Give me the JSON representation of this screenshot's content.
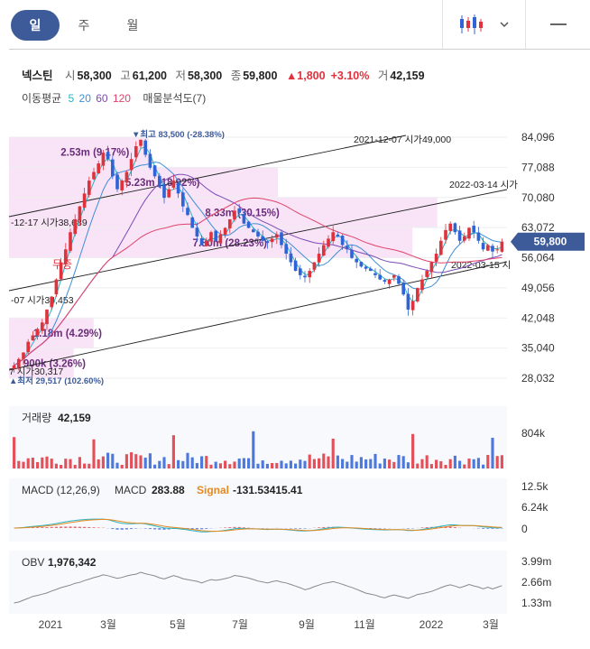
{
  "tabs": [
    {
      "label": "일",
      "active": true
    },
    {
      "label": "주",
      "active": false
    },
    {
      "label": "월",
      "active": false
    }
  ],
  "toolbar": {
    "chart_type_icon": "candlestick-icon",
    "dropdown_icon": "chevron-down-icon",
    "menu_icon": "menu-icon"
  },
  "quote": {
    "name": "넥스틴",
    "open_label": "시",
    "open": "58,300",
    "high_label": "고",
    "high": "61,200",
    "low_label": "저",
    "low": "58,300",
    "close_label": "종",
    "close": "59,800",
    "change": "▲1,800",
    "change_pct": "+3.10%",
    "volume_label": "거",
    "volume": "42,159"
  },
  "indicators": {
    "ma_label": "이동평균",
    "ma_periods": [
      {
        "value": "5",
        "color": "#2bb3c0"
      },
      {
        "value": "20",
        "color": "#3e8fd6"
      },
      {
        "value": "60",
        "color": "#7b4bb5"
      },
      {
        "value": "120",
        "color": "#e0426b"
      }
    ],
    "vp_label": "매물분석도(7)"
  },
  "colors": {
    "up": "#e0323c",
    "down": "#2f63d6",
    "volume_profile": "#f5d8f2",
    "accent": "#3d5a99"
  },
  "chart_data": {
    "type": "candlestick",
    "x_labels": [
      "2021",
      "3월",
      "5월",
      "7월",
      "9월",
      "11월",
      "2022",
      "3월"
    ],
    "price_axis": [
      "84,096",
      "77,088",
      "70,080",
      "63,072",
      "56,064",
      "49,056",
      "42,048",
      "35,040",
      "28,032"
    ],
    "ylim": [
      28032,
      84096
    ],
    "current_price": "59,800",
    "high_marker": {
      "label": "▼최고",
      "value": "83,500 (-28.38%)"
    },
    "low_marker": {
      "label": "▲최저",
      "value": "29,517 (102.60%)"
    },
    "trendline_labels": [
      "2021-12-07 시가49,000",
      "2022-03-14 시가",
      "-12-17 시가38,689",
      "2022-03-15 시",
      "-07 시가34,453",
      "7 시가30,317"
    ],
    "volume_profile": [
      {
        "label": "2.53m (9.17%)",
        "price_low": 77088,
        "price_high": 84096
      },
      {
        "label": "5.23m (18.92%)",
        "price_low": 70080,
        "price_high": 77088
      },
      {
        "label": "8.33m (30.15%)",
        "price_low": 63072,
        "price_high": 70080
      },
      {
        "label": "7.80m (28.23%)",
        "price_low": 56064,
        "price_high": 63072
      },
      {
        "label": "1.18m (4.29%)",
        "price_low": 35040,
        "price_high": 42048
      },
      {
        "label": "900k (3.26%)",
        "price_low": 28032,
        "price_high": 35040
      }
    ],
    "annotation": "무증",
    "close_series": [
      31000,
      32500,
      34000,
      36500,
      38000,
      39500,
      41000,
      44000,
      47000,
      51000,
      55000,
      58000,
      62000,
      65000,
      68000,
      71000,
      74000,
      76000,
      78000,
      80500,
      79000,
      75000,
      72000,
      74000,
      76000,
      79000,
      82000,
      83500,
      80000,
      77000,
      75000,
      72500,
      70000,
      72000,
      74000,
      71000,
      68000,
      66000,
      63000,
      61000,
      59000,
      60000,
      62000,
      60000,
      61500,
      63000,
      65000,
      67000,
      66500,
      64000,
      63000,
      62000,
      61000,
      60000,
      59500,
      60500,
      61500,
      59000,
      57000,
      55000,
      53000,
      52000,
      51500,
      53000,
      55000,
      57000,
      59000,
      60500,
      62000,
      61000,
      59000,
      58000,
      56000,
      55000,
      54000,
      53500,
      53000,
      52000,
      51000,
      50500,
      51000,
      52000,
      50000,
      47500,
      44000,
      46000,
      49000,
      51000,
      53000,
      55000,
      57000,
      60000,
      62500,
      64000,
      62000,
      60000,
      61000,
      63000,
      62000,
      60000,
      58000,
      59000,
      57500,
      58000,
      59800
    ],
    "volume": {
      "label": "거래량",
      "value": "42,159",
      "axis": "804k"
    },
    "macd": {
      "label": "MACD (12,26,9)",
      "macd_label": "MACD",
      "macd_value": "283.88",
      "signal_label": "Signal",
      "signal_value": "-131.53415.41",
      "axis": [
        "12.5k",
        "6.24k",
        "0"
      ]
    },
    "obv": {
      "label": "OBV",
      "value": "1,976,342",
      "axis": [
        "3.99m",
        "2.66m",
        "1.33m"
      ]
    }
  }
}
